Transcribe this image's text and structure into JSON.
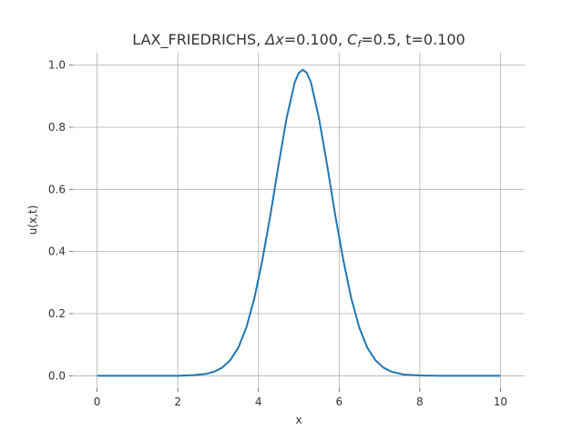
{
  "chart_data": {
    "type": "line",
    "title_parts": {
      "scheme": "LAX_FRIEDRICHS, ",
      "dx_symbol": "Δx",
      "dx_value": "=0.100, ",
      "c_symbol": "C",
      "c_subscript": "f",
      "c_value": "=0.5, t=0.100"
    },
    "xlabel": "x",
    "ylabel": "u(x,t)",
    "xlim": [
      -0.6,
      10.6
    ],
    "ylim": [
      -0.04,
      1.04
    ],
    "xticks": [
      0,
      2,
      4,
      6,
      8,
      10
    ],
    "xtick_labels": [
      "0",
      "2",
      "4",
      "6",
      "8",
      "10"
    ],
    "yticks": [
      0.0,
      0.2,
      0.4,
      0.6,
      0.8,
      1.0
    ],
    "ytick_labels": [
      "0.0",
      "0.2",
      "0.4",
      "0.6",
      "0.8",
      "1.0"
    ],
    "grid": true,
    "series": [
      {
        "color": "#1f77b4",
        "x": [
          0.0,
          0.5,
          1.0,
          1.5,
          2.0,
          2.4,
          2.7,
          2.9,
          3.1,
          3.3,
          3.5,
          3.7,
          3.9,
          4.1,
          4.3,
          4.5,
          4.7,
          4.9,
          5.0,
          5.1,
          5.2,
          5.3,
          5.5,
          5.7,
          5.9,
          6.1,
          6.3,
          6.5,
          6.7,
          6.9,
          7.1,
          7.3,
          7.6,
          8.0,
          8.5,
          9.0,
          10.0
        ],
        "y": [
          0.0,
          0.0,
          0.0,
          0.0,
          0.0,
          0.002,
          0.006,
          0.013,
          0.026,
          0.05,
          0.09,
          0.155,
          0.25,
          0.375,
          0.52,
          0.68,
          0.83,
          0.945,
          0.975,
          0.985,
          0.975,
          0.945,
          0.83,
          0.68,
          0.52,
          0.375,
          0.25,
          0.155,
          0.09,
          0.05,
          0.026,
          0.013,
          0.004,
          0.001,
          0.0,
          0.0,
          0.0
        ]
      }
    ]
  }
}
